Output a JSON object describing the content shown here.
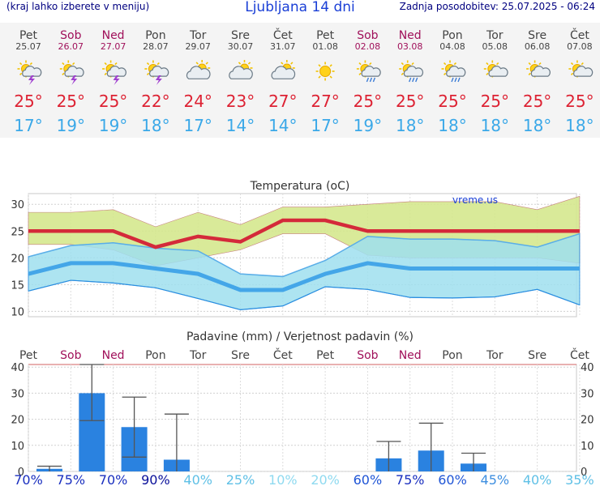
{
  "header": {
    "menu_hint": "(kraj lahko izberete v meniju)",
    "title": "Ljubljana 14 dni",
    "updated": "Zadnja posodobitev: 25.07.2025 - 06:24"
  },
  "colors": {
    "weekday": "#444444",
    "weekend": "#a0105a",
    "max_temp": "#dd2233",
    "min_temp": "#3aa8e8",
    "precip_bar": "#2a82e0",
    "max_band": "#d5e88e",
    "min_band": "#9fe0ef",
    "overlap": "#8cd48c"
  },
  "days": [
    {
      "name": "Pet",
      "date": "25.07",
      "weekend": false,
      "icon": "sun-cloud-thunder-icon",
      "max": "25°",
      "min": "17°"
    },
    {
      "name": "Sob",
      "date": "26.07",
      "weekend": true,
      "icon": "sun-cloud-thunder-icon",
      "max": "25°",
      "min": "19°"
    },
    {
      "name": "Ned",
      "date": "27.07",
      "weekend": true,
      "icon": "sun-cloud-thunder-icon",
      "max": "25°",
      "min": "19°"
    },
    {
      "name": "Pon",
      "date": "28.07",
      "weekend": false,
      "icon": "sun-cloud-thunder-icon",
      "max": "22°",
      "min": "18°"
    },
    {
      "name": "Tor",
      "date": "29.07",
      "weekend": false,
      "icon": "partly-cloudy-icon",
      "max": "24°",
      "min": "17°"
    },
    {
      "name": "Sre",
      "date": "30.07",
      "weekend": false,
      "icon": "partly-cloudy-icon",
      "max": "23°",
      "min": "14°"
    },
    {
      "name": "Čet",
      "date": "31.07",
      "weekend": false,
      "icon": "partly-cloudy-icon",
      "max": "27°",
      "min": "14°"
    },
    {
      "name": "Pet",
      "date": "01.08",
      "weekend": false,
      "icon": "sun-icon",
      "max": "27°",
      "min": "17°"
    },
    {
      "name": "Sob",
      "date": "02.08",
      "weekend": true,
      "icon": "sun-cloud-rain-icon",
      "max": "25°",
      "min": "19°"
    },
    {
      "name": "Ned",
      "date": "03.08",
      "weekend": true,
      "icon": "sun-cloud-rain-icon",
      "max": "25°",
      "min": "18°"
    },
    {
      "name": "Pon",
      "date": "04.08",
      "weekend": false,
      "icon": "sun-cloud-rain-icon",
      "max": "25°",
      "min": "18°"
    },
    {
      "name": "Tor",
      "date": "05.08",
      "weekend": false,
      "icon": "sun-cloud-icon",
      "max": "25°",
      "min": "18°"
    },
    {
      "name": "Sre",
      "date": "06.08",
      "weekend": false,
      "icon": "sun-cloud-icon",
      "max": "25°",
      "min": "18°"
    },
    {
      "name": "Čet",
      "date": "07.08",
      "weekend": false,
      "icon": "sun-cloud-icon",
      "max": "25°",
      "min": "18°"
    }
  ],
  "chart_data": [
    {
      "type": "line",
      "title": "Temperatura (oC)",
      "watermark": "vreme.us",
      "x": [
        "25.07",
        "26.07",
        "27.07",
        "28.07",
        "29.07",
        "30.07",
        "31.07",
        "01.08",
        "02.08",
        "03.08",
        "04.08",
        "05.08",
        "06.08",
        "07.08"
      ],
      "ylim": [
        9,
        32
      ],
      "yticks": [
        10,
        15,
        20,
        25,
        30
      ],
      "grid": true,
      "series": [
        {
          "values": [
            25,
            25,
            25,
            22,
            24,
            23,
            27,
            27,
            25,
            25,
            25,
            25,
            25,
            25
          ]
        },
        {
          "values": [
            28.5,
            28.5,
            29,
            25.8,
            28.5,
            26.2,
            29.5,
            29.5,
            30,
            30.5,
            30.5,
            30.5,
            29,
            31.5
          ]
        },
        {
          "values": [
            22.5,
            22.5,
            21.5,
            18.5,
            20,
            21.5,
            24.5,
            24.5,
            20.5,
            20,
            20,
            20,
            20,
            19
          ]
        },
        {
          "values": [
            17,
            19,
            19,
            18,
            17,
            14,
            14,
            17,
            19,
            18,
            18,
            18,
            18,
            18
          ]
        },
        {
          "values": [
            20.2,
            22.3,
            22.8,
            21.8,
            21.3,
            17,
            16.5,
            19.5,
            24,
            23.5,
            23.5,
            23.2,
            22,
            24.5
          ]
        },
        {
          "values": [
            13.8,
            15.8,
            15.3,
            14.4,
            12.4,
            10.3,
            11,
            14.6,
            14.1,
            12.6,
            12.5,
            12.7,
            14.1,
            11.2
          ]
        }
      ]
    },
    {
      "type": "bar",
      "title": "Padavine (mm) / Verjetnost padavin (%)",
      "categories": [
        "Pet",
        "Sob",
        "Ned",
        "Pon",
        "Tor",
        "Sre",
        "Čet",
        "Pet",
        "Sob",
        "Ned",
        "Pon",
        "Tor",
        "Sre",
        "Čet"
      ],
      "weekend": [
        false,
        true,
        true,
        false,
        false,
        false,
        false,
        false,
        true,
        true,
        false,
        false,
        false,
        false
      ],
      "ylim": [
        0,
        41
      ],
      "yticks": [
        0,
        10,
        20,
        30,
        40
      ],
      "series": [
        {
          "values": [
            1,
            30,
            17,
            4.5,
            0,
            0,
            0,
            0,
            5,
            8,
            3,
            0,
            0,
            0
          ]
        },
        {
          "values": [
            2,
            41,
            28.5,
            22,
            0,
            0,
            0,
            0,
            11.5,
            18.5,
            7,
            0,
            0,
            0
          ]
        },
        {
          "values": [
            0,
            19.5,
            5.5,
            0,
            0,
            0,
            0,
            0,
            0,
            0,
            0,
            0,
            0,
            0
          ]
        }
      ],
      "probability": [
        "70%",
        "75%",
        "70%",
        "90%",
        "40%",
        "25%",
        "10%",
        "20%",
        "60%",
        "75%",
        "60%",
        "45%",
        "40%",
        "35%"
      ],
      "probability_colors": [
        "#1a2fbf",
        "#1a2fbf",
        "#1a2fbf",
        "#0a109a",
        "#5fc0e6",
        "#5fc0e6",
        "#8fdaf0",
        "#8fdaf0",
        "#1f55d6",
        "#1a2fbf",
        "#1f55d6",
        "#3f8fe0",
        "#5fc0e6",
        "#5fc0e6"
      ]
    }
  ]
}
